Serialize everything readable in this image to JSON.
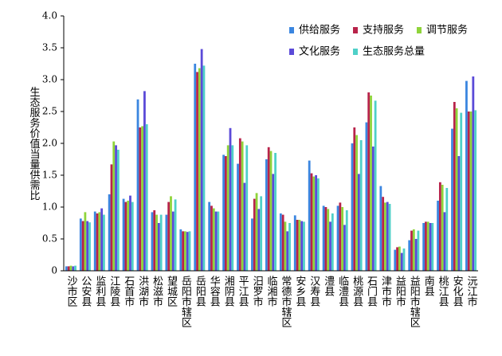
{
  "chart_data": {
    "type": "bar",
    "y_label": "生态服务价值当量供需比",
    "categories": [
      "沙市区",
      "公安县",
      "监利县",
      "江陵县",
      "石首市",
      "洪湖市",
      "松滋市",
      "望城区",
      "岳阳市辖区",
      "岳阳县",
      "华容县",
      "湘阴县",
      "平江县",
      "汨罗市",
      "临湘市",
      "常德市辖区",
      "安乡县",
      "汉寿县",
      "澧县",
      "临澧县",
      "桃源县",
      "石门县",
      "津市市",
      "益阳市",
      "益阳市辖区",
      "南县",
      "桃江县",
      "安化县",
      "沅江市"
    ],
    "series": [
      {
        "name": "供给服务",
        "color": "#3b86e0",
        "values": [
          0.07,
          0.82,
          0.93,
          1.2,
          1.13,
          2.69,
          0.92,
          0.88,
          0.65,
          3.25,
          1.08,
          1.82,
          1.68,
          0.82,
          1.75,
          0.9,
          0.87,
          1.73,
          1.02,
          1.02,
          2.0,
          2.33,
          1.33,
          0.33,
          0.48,
          0.75,
          1.1,
          2.23,
          2.98
        ]
      },
      {
        "name": "支持服务",
        "color": "#b8234a",
        "values": [
          0.07,
          0.78,
          0.9,
          1.67,
          1.08,
          2.25,
          0.95,
          1.08,
          0.62,
          3.12,
          1.02,
          1.8,
          2.08,
          1.13,
          1.94,
          0.88,
          0.8,
          1.53,
          1.0,
          1.07,
          2.25,
          2.8,
          1.16,
          0.37,
          0.63,
          0.77,
          1.39,
          2.65,
          2.5
        ]
      },
      {
        "name": "调节服务",
        "color": "#8fd43a",
        "values": [
          0.08,
          0.92,
          0.92,
          2.03,
          1.1,
          2.27,
          0.88,
          1.17,
          0.62,
          3.18,
          0.98,
          1.97,
          2.03,
          1.22,
          1.88,
          0.77,
          0.8,
          1.48,
          0.97,
          1.0,
          2.13,
          2.75,
          1.07,
          0.38,
          0.65,
          0.77,
          1.35,
          2.55,
          2.5
        ]
      },
      {
        "name": "文化服务",
        "color": "#5b4ad8",
        "values": [
          0.07,
          0.78,
          0.98,
          1.97,
          1.18,
          2.82,
          0.75,
          0.93,
          0.61,
          3.48,
          0.93,
          2.24,
          1.38,
          0.97,
          1.52,
          0.62,
          0.78,
          1.5,
          0.77,
          0.72,
          1.52,
          1.95,
          1.08,
          0.28,
          0.5,
          0.75,
          0.92,
          1.8,
          3.05
        ]
      },
      {
        "name": "生态服务总量",
        "color": "#4fd0c8",
        "values": [
          0.08,
          0.76,
          0.88,
          1.9,
          1.08,
          2.3,
          0.88,
          1.12,
          0.62,
          3.22,
          0.93,
          1.97,
          1.97,
          1.17,
          1.85,
          0.75,
          0.77,
          1.45,
          0.9,
          0.95,
          2.05,
          2.67,
          1.05,
          0.35,
          0.63,
          0.75,
          1.3,
          2.48,
          2.52
        ]
      }
    ],
    "ylim": [
      0,
      4
    ],
    "yticks": [
      0,
      0.5,
      {
        "value": 1,
        "label": "1.0"
      },
      1.5,
      {
        "value": 2,
        "label": "2.0"
      },
      2.5,
      {
        "value": 3,
        "label": "3.0"
      },
      3.5,
      {
        "value": 4,
        "label": "4.0"
      }
    ]
  }
}
